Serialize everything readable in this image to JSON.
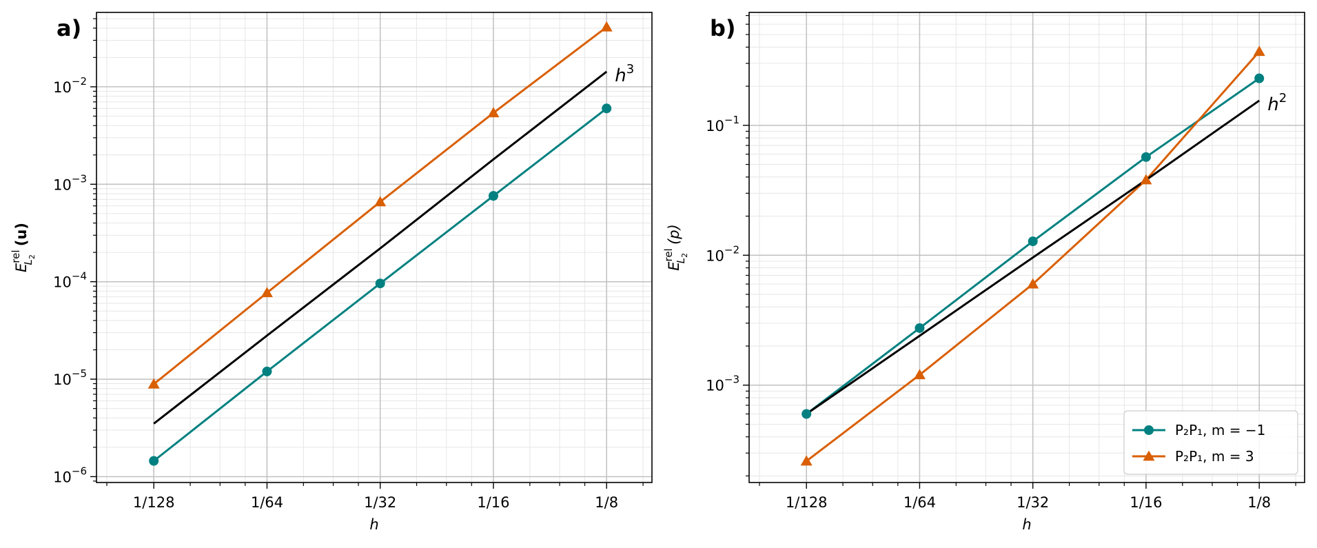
{
  "colors": {
    "series_m_neg1": "#008080",
    "series_m_3": "#d95f02",
    "reference": "#000000",
    "grid_major": "#c0c0c0",
    "grid_minor": "#e6e6e6"
  },
  "legend": {
    "placement": "lower-right",
    "entries": [
      {
        "label": "P₂P₁, m = −1",
        "marker": "circle",
        "color": "#008080"
      },
      {
        "label": "P₂P₁, m = 3",
        "marker": "triangle",
        "color": "#d95f02"
      }
    ]
  },
  "chart_data": [
    {
      "type": "line",
      "panel_label": "a)",
      "xlabel": "h",
      "ylabel": "E_{L2}^{rel}(u)",
      "ylabel_main": "E",
      "ylabel_sup": "rel",
      "ylabel_sub": "L",
      "ylabel_subsub": "2",
      "ylabel_arg": "(u)",
      "xscale": "log2",
      "yscale": "log",
      "grid": "major+minor",
      "x": [
        0.0078125,
        0.015625,
        0.03125,
        0.0625,
        0.125
      ],
      "x_tick_labels": [
        "1/128",
        "1/64",
        "1/32",
        "1/16",
        "1/8"
      ],
      "xlim": [
        0.0055,
        0.165
      ],
      "ylim": [
        8.7e-07,
        0.058
      ],
      "y_ticks": [
        {
          "value": 1e-06,
          "base": "10",
          "exp": "−6"
        },
        {
          "value": 1e-05,
          "base": "10",
          "exp": "−5"
        },
        {
          "value": 0.0001,
          "base": "10",
          "exp": "−4"
        },
        {
          "value": 0.001,
          "base": "10",
          "exp": "−3"
        },
        {
          "value": 0.01,
          "base": "10",
          "exp": "−2"
        }
      ],
      "series": [
        {
          "key": "m_neg1",
          "marker": "circle",
          "color": "#008080",
          "values": [
            1.45e-06,
            1.2e-05,
            9.6e-05,
            0.00076,
            0.006
          ]
        },
        {
          "key": "m_3",
          "marker": "triangle",
          "color": "#d95f02",
          "values": [
            8.9e-06,
            7.7e-05,
            0.00066,
            0.0054,
            0.041
          ]
        },
        {
          "key": "ref",
          "marker": "none",
          "color": "#000000",
          "values": [
            3.5e-06,
            2.8e-05,
            0.00022,
            0.0018,
            0.0143
          ]
        }
      ],
      "reference_label": {
        "base": "h",
        "exp": "3"
      }
    },
    {
      "type": "line",
      "panel_label": "b)",
      "xlabel": "h",
      "ylabel": "E_{L2}^{rel}(p)",
      "ylabel_main": "E",
      "ylabel_sup": "rel",
      "ylabel_sub": "L",
      "ylabel_subsub": "2",
      "ylabel_arg": "(p)",
      "xscale": "log2",
      "yscale": "log",
      "grid": "major+minor",
      "x": [
        0.0078125,
        0.015625,
        0.03125,
        0.0625,
        0.125
      ],
      "x_tick_labels": [
        "1/128",
        "1/64",
        "1/32",
        "1/16",
        "1/8"
      ],
      "xlim": [
        0.0055,
        0.165
      ],
      "ylim": [
        0.000178,
        0.74
      ],
      "y_ticks": [
        {
          "value": 0.001,
          "base": "10",
          "exp": "−3"
        },
        {
          "value": 0.01,
          "base": "10",
          "exp": "−2"
        },
        {
          "value": 0.1,
          "base": "10",
          "exp": "−1"
        }
      ],
      "series": [
        {
          "key": "m_neg1",
          "marker": "circle",
          "color": "#008080",
          "values": [
            0.0006,
            0.00275,
            0.0128,
            0.057,
            0.23
          ]
        },
        {
          "key": "m_3",
          "marker": "triangle",
          "color": "#d95f02",
          "values": [
            0.00026,
            0.0012,
            0.006,
            0.038,
            0.37
          ]
        },
        {
          "key": "ref",
          "marker": "none",
          "color": "#000000",
          "values": [
            0.0006,
            0.0024,
            0.0096,
            0.038,
            0.155
          ]
        }
      ],
      "reference_label": {
        "base": "h",
        "exp": "2"
      }
    }
  ]
}
